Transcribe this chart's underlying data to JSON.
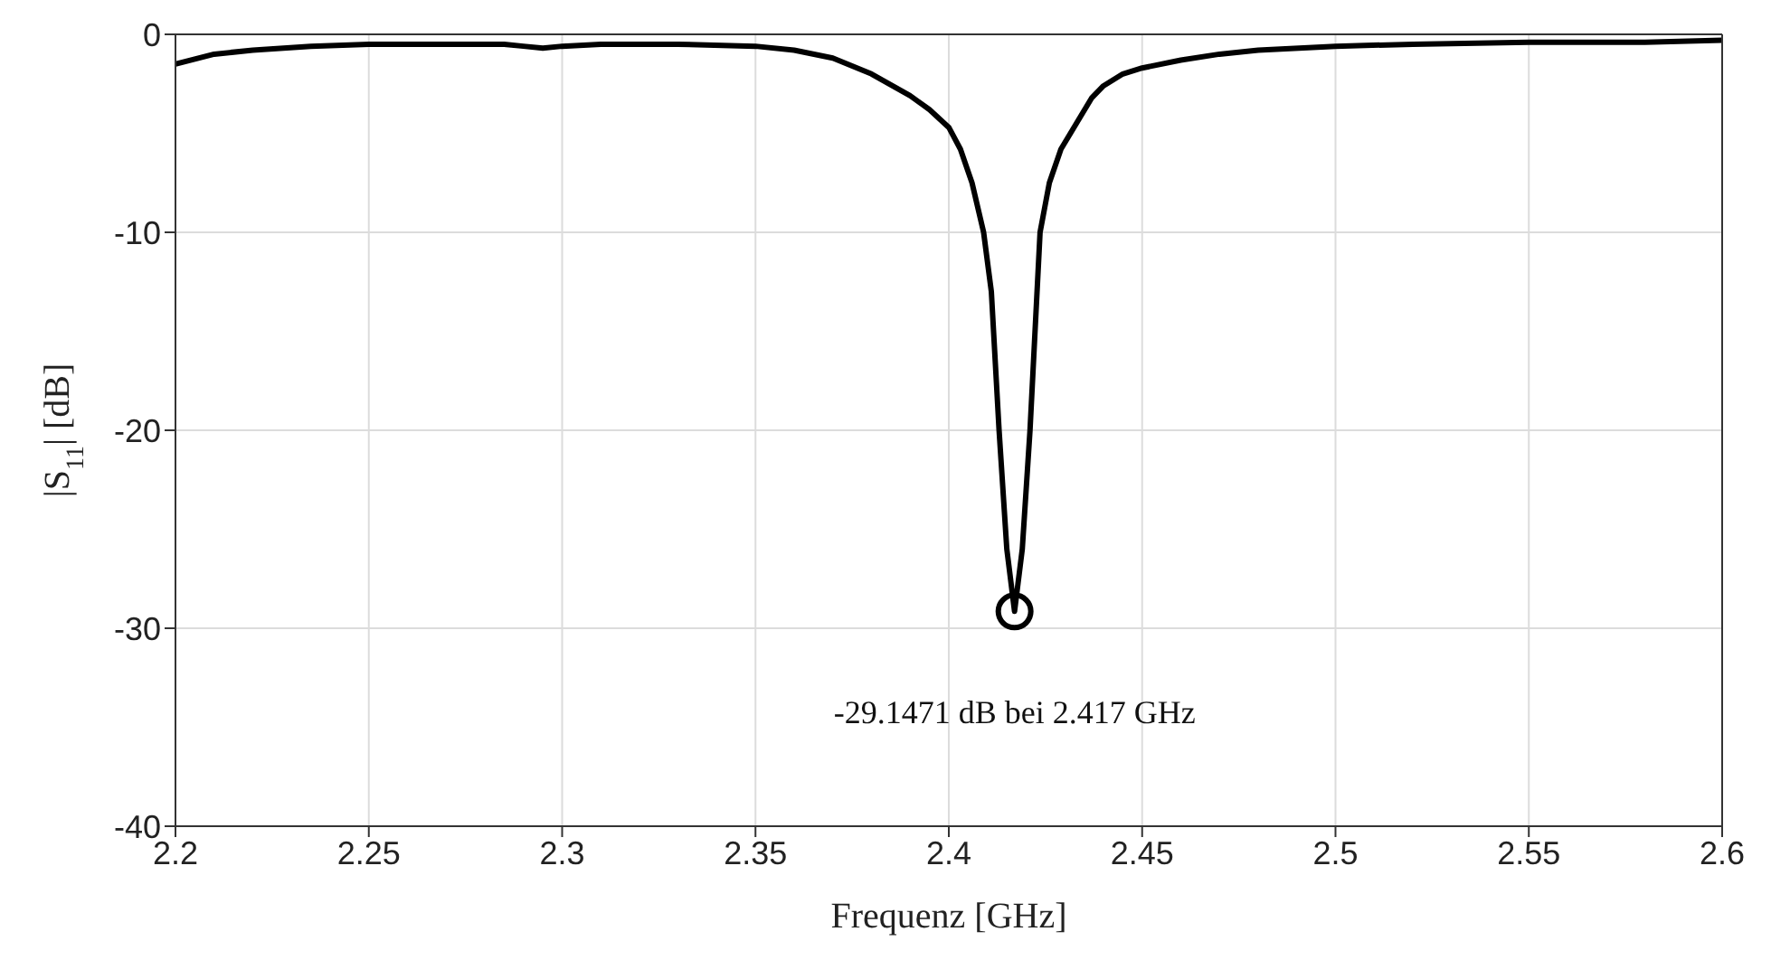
{
  "chart_data": {
    "type": "line",
    "xlabel": "Frequenz [GHz]",
    "ylabel": "|S$_{11}$| [dB]",
    "xlim": [
      2.2,
      2.6
    ],
    "ylim": [
      -40,
      0
    ],
    "xticks": [
      2.2,
      2.25,
      2.3,
      2.35,
      2.4,
      2.45,
      2.5,
      2.55,
      2.6
    ],
    "yticks": [
      -40,
      -30,
      -20,
      -10,
      0
    ],
    "grid": true,
    "line_style": "solid",
    "marker": "none",
    "annotations": [
      {
        "text": "-29.1471 dB bei 2.417 GHz",
        "x": 2.417,
        "y": -29.1471
      }
    ],
    "series": [
      {
        "color": "#000000",
        "x": [
          2.2,
          2.21,
          2.22,
          2.235,
          2.25,
          2.27,
          2.285,
          2.29,
          2.295,
          2.3,
          2.31,
          2.33,
          2.35,
          2.36,
          2.37,
          2.38,
          2.39,
          2.395,
          2.4,
          2.403,
          2.406,
          2.409,
          2.411,
          2.413,
          2.415,
          2.417,
          2.419,
          2.421,
          2.4236,
          2.426,
          2.429,
          2.433,
          2.437,
          2.44,
          2.445,
          2.45,
          2.46,
          2.47,
          2.48,
          2.5,
          2.52,
          2.55,
          2.58,
          2.6
        ],
        "values": [
          -1.5,
          -1.0,
          -0.8,
          -0.6,
          -0.5,
          -0.5,
          -0.5,
          -0.6,
          -0.7,
          -0.6,
          -0.5,
          -0.5,
          -0.6,
          -0.8,
          -1.2,
          -2.0,
          -3.1,
          -3.8,
          -4.7,
          -5.8,
          -7.5,
          -10,
          -13,
          -20,
          -26,
          -29.1471,
          -26,
          -20,
          -10,
          -7.5,
          -5.8,
          -4.5,
          -3.2,
          -2.6,
          -2.0,
          -1.7,
          -1.3,
          -1.0,
          -0.8,
          -0.6,
          -0.5,
          -0.4,
          -0.4,
          -0.3
        ]
      },
      {
        "type": "scatter",
        "color": "#000000",
        "marker": "circle",
        "x": [
          2.417
        ],
        "values": [
          -29.1471
        ]
      }
    ]
  }
}
